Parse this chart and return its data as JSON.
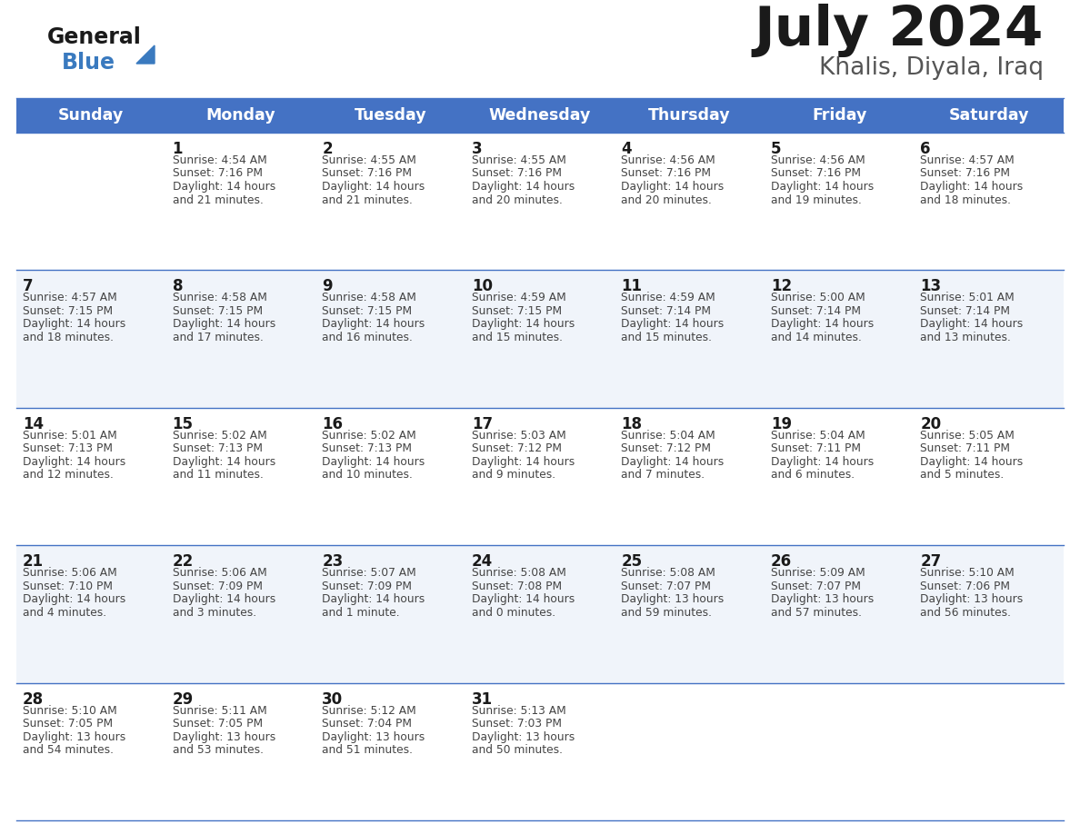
{
  "title": "July 2024",
  "subtitle": "Khalis, Diyala, Iraq",
  "header_color": "#4472C4",
  "header_text_color": "#FFFFFF",
  "bg_color": "#FFFFFF",
  "alt_row_color": "#F0F4FA",
  "border_color": "#4472C4",
  "day_headers": [
    "Sunday",
    "Monday",
    "Tuesday",
    "Wednesday",
    "Thursday",
    "Friday",
    "Saturday"
  ],
  "calendar": [
    [
      {
        "day": "",
        "sunrise": "",
        "sunset": "",
        "daylight": ""
      },
      {
        "day": "1",
        "sunrise": "4:54 AM",
        "sunset": "7:16 PM",
        "daylight": "14 hours\nand 21 minutes."
      },
      {
        "day": "2",
        "sunrise": "4:55 AM",
        "sunset": "7:16 PM",
        "daylight": "14 hours\nand 21 minutes."
      },
      {
        "day": "3",
        "sunrise": "4:55 AM",
        "sunset": "7:16 PM",
        "daylight": "14 hours\nand 20 minutes."
      },
      {
        "day": "4",
        "sunrise": "4:56 AM",
        "sunset": "7:16 PM",
        "daylight": "14 hours\nand 20 minutes."
      },
      {
        "day": "5",
        "sunrise": "4:56 AM",
        "sunset": "7:16 PM",
        "daylight": "14 hours\nand 19 minutes."
      },
      {
        "day": "6",
        "sunrise": "4:57 AM",
        "sunset": "7:16 PM",
        "daylight": "14 hours\nand 18 minutes."
      }
    ],
    [
      {
        "day": "7",
        "sunrise": "4:57 AM",
        "sunset": "7:15 PM",
        "daylight": "14 hours\nand 18 minutes."
      },
      {
        "day": "8",
        "sunrise": "4:58 AM",
        "sunset": "7:15 PM",
        "daylight": "14 hours\nand 17 minutes."
      },
      {
        "day": "9",
        "sunrise": "4:58 AM",
        "sunset": "7:15 PM",
        "daylight": "14 hours\nand 16 minutes."
      },
      {
        "day": "10",
        "sunrise": "4:59 AM",
        "sunset": "7:15 PM",
        "daylight": "14 hours\nand 15 minutes."
      },
      {
        "day": "11",
        "sunrise": "4:59 AM",
        "sunset": "7:14 PM",
        "daylight": "14 hours\nand 15 minutes."
      },
      {
        "day": "12",
        "sunrise": "5:00 AM",
        "sunset": "7:14 PM",
        "daylight": "14 hours\nand 14 minutes."
      },
      {
        "day": "13",
        "sunrise": "5:01 AM",
        "sunset": "7:14 PM",
        "daylight": "14 hours\nand 13 minutes."
      }
    ],
    [
      {
        "day": "14",
        "sunrise": "5:01 AM",
        "sunset": "7:13 PM",
        "daylight": "14 hours\nand 12 minutes."
      },
      {
        "day": "15",
        "sunrise": "5:02 AM",
        "sunset": "7:13 PM",
        "daylight": "14 hours\nand 11 minutes."
      },
      {
        "day": "16",
        "sunrise": "5:02 AM",
        "sunset": "7:13 PM",
        "daylight": "14 hours\nand 10 minutes."
      },
      {
        "day": "17",
        "sunrise": "5:03 AM",
        "sunset": "7:12 PM",
        "daylight": "14 hours\nand 9 minutes."
      },
      {
        "day": "18",
        "sunrise": "5:04 AM",
        "sunset": "7:12 PM",
        "daylight": "14 hours\nand 7 minutes."
      },
      {
        "day": "19",
        "sunrise": "5:04 AM",
        "sunset": "7:11 PM",
        "daylight": "14 hours\nand 6 minutes."
      },
      {
        "day": "20",
        "sunrise": "5:05 AM",
        "sunset": "7:11 PM",
        "daylight": "14 hours\nand 5 minutes."
      }
    ],
    [
      {
        "day": "21",
        "sunrise": "5:06 AM",
        "sunset": "7:10 PM",
        "daylight": "14 hours\nand 4 minutes."
      },
      {
        "day": "22",
        "sunrise": "5:06 AM",
        "sunset": "7:09 PM",
        "daylight": "14 hours\nand 3 minutes."
      },
      {
        "day": "23",
        "sunrise": "5:07 AM",
        "sunset": "7:09 PM",
        "daylight": "14 hours\nand 1 minute."
      },
      {
        "day": "24",
        "sunrise": "5:08 AM",
        "sunset": "7:08 PM",
        "daylight": "14 hours\nand 0 minutes."
      },
      {
        "day": "25",
        "sunrise": "5:08 AM",
        "sunset": "7:07 PM",
        "daylight": "13 hours\nand 59 minutes."
      },
      {
        "day": "26",
        "sunrise": "5:09 AM",
        "sunset": "7:07 PM",
        "daylight": "13 hours\nand 57 minutes."
      },
      {
        "day": "27",
        "sunrise": "5:10 AM",
        "sunset": "7:06 PM",
        "daylight": "13 hours\nand 56 minutes."
      }
    ],
    [
      {
        "day": "28",
        "sunrise": "5:10 AM",
        "sunset": "7:05 PM",
        "daylight": "13 hours\nand 54 minutes."
      },
      {
        "day": "29",
        "sunrise": "5:11 AM",
        "sunset": "7:05 PM",
        "daylight": "13 hours\nand 53 minutes."
      },
      {
        "day": "30",
        "sunrise": "5:12 AM",
        "sunset": "7:04 PM",
        "daylight": "13 hours\nand 51 minutes."
      },
      {
        "day": "31",
        "sunrise": "5:13 AM",
        "sunset": "7:03 PM",
        "daylight": "13 hours\nand 50 minutes."
      },
      {
        "day": "",
        "sunrise": "",
        "sunset": "",
        "daylight": ""
      },
      {
        "day": "",
        "sunrise": "",
        "sunset": "",
        "daylight": ""
      },
      {
        "day": "",
        "sunrise": "",
        "sunset": "",
        "daylight": ""
      }
    ]
  ],
  "logo_general_color": "#1a1a1a",
  "logo_blue_color": "#3a7abf",
  "title_color": "#1a1a1a",
  "subtitle_color": "#555555",
  "day_num_color": "#1a1a1a",
  "cell_text_color": "#444444"
}
